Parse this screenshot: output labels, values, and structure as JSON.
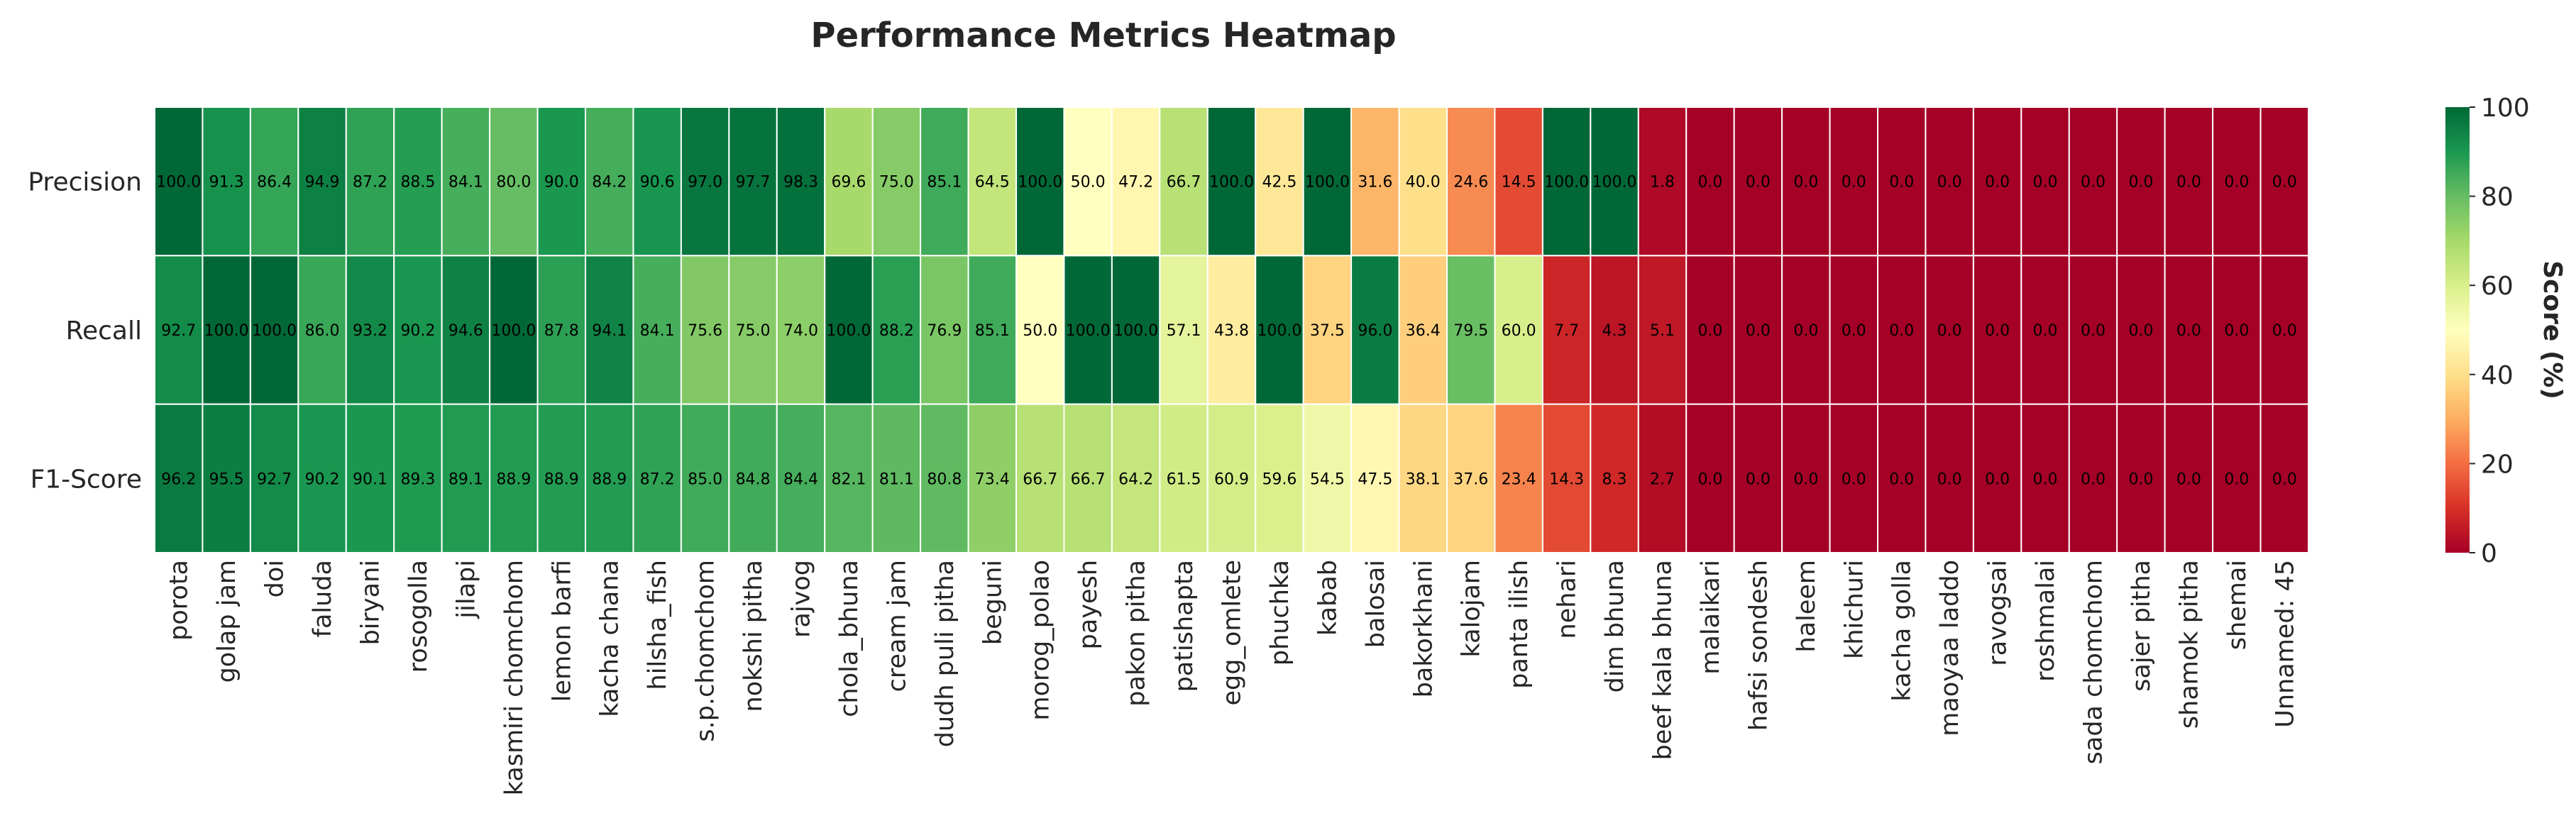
{
  "chart_data": {
    "type": "heatmap",
    "title": "Performance Metrics Heatmap",
    "rows": [
      "Precision",
      "Recall",
      "F1-Score"
    ],
    "columns": [
      "porota",
      "golap jam",
      "doi",
      "faluda",
      "biryani",
      "rosogolla",
      "jilapi",
      "kasmiri chomchom",
      "lemon barfi",
      "kacha chana",
      "hilsha_fish",
      "s.p.chomchom",
      "nokshi pitha",
      "rajvog",
      "chola_bhuna",
      "cream jam",
      "dudh puli pitha",
      "beguni",
      "morog_polao",
      "payesh",
      "pakon pitha",
      "patishapta",
      "egg_omlete",
      "phuchka",
      "kabab",
      "balosai",
      "bakorkhani",
      "kalojam",
      "panta ilish",
      "nehari",
      "dim bhuna",
      "beef kala bhuna",
      "malaikari",
      "hafsi sondesh",
      "haleem",
      "khichuri",
      "kacha golla",
      "maoyaa laddo",
      "ravogsai",
      "roshmalai",
      "sada chomchom",
      "sajer pitha",
      "shamok pitha",
      "shemai",
      "Unnamed: 45"
    ],
    "cells": [
      {
        "values": [
          100.0,
          91.3,
          86.4,
          94.9,
          87.2,
          88.5,
          84.1,
          80.0,
          90.0,
          84.2,
          90.6,
          97.0,
          97.7,
          98.3,
          69.6,
          75.0,
          85.1,
          64.5,
          100.0,
          50.0,
          47.2,
          66.7,
          100.0,
          42.5,
          100.0,
          31.6,
          40.0,
          24.6,
          14.5,
          100.0,
          100.0,
          1.8,
          0.0,
          0.0,
          0.0,
          0.0,
          0.0,
          0.0,
          0.0,
          0.0,
          0.0,
          0.0,
          0.0,
          0.0,
          0.0
        ],
        "labels": [
          "100.0",
          "91.3",
          "86.4",
          "94.9",
          "87.2",
          "88.5",
          "84.1",
          "80.0",
          "90.0",
          "84.2",
          "90.6",
          "97.0",
          "97.7",
          "98.3",
          "69.6",
          "75.0",
          "85.1",
          "64.5",
          "100.0",
          "50.0",
          "47.2",
          "66.7",
          "100.0",
          "42.5",
          "100.0",
          "31.6",
          "40.0",
          "24.6",
          "14.5",
          "100.0",
          "100.0",
          "1.8",
          "0.0",
          "0.0",
          "0.0",
          "0.0",
          "0.0",
          "0.0",
          "0.0",
          "0.0",
          "0.0",
          "0.0",
          "0.0",
          "0.0",
          "0.0"
        ]
      },
      {
        "values": [
          92.7,
          100.0,
          100.0,
          86.0,
          93.2,
          90.2,
          94.6,
          100.0,
          87.8,
          94.1,
          84.1,
          75.6,
          75.0,
          74.0,
          100.0,
          88.2,
          76.9,
          85.1,
          50.0,
          100.0,
          100.0,
          57.1,
          43.8,
          100.0,
          37.5,
          96.0,
          36.4,
          79.5,
          60.0,
          7.7,
          4.3,
          5.1,
          0.0,
          0.0,
          0.0,
          0.0,
          0.0,
          0.0,
          0.0,
          0.0,
          0.0,
          0.0,
          0.0,
          0.0,
          0.0
        ],
        "labels": [
          "92.7",
          "100.0",
          "100.0",
          "86.0",
          "93.2",
          "90.2",
          "94.6",
          "100.0",
          "87.8",
          "94.1",
          "84.1",
          "75.6",
          "75.0",
          "74.0",
          "100.0",
          "88.2",
          "76.9",
          "85.1",
          "50.0",
          "100.0",
          "100.0",
          "57.1",
          "43.8",
          "100.0",
          "37.5",
          "96.0",
          "36.4",
          "79.5",
          "60.0",
          "7.7",
          "4.3",
          "5.1",
          "0.0",
          "0.0",
          "0.0",
          "0.0",
          "0.0",
          "0.0",
          "0.0",
          "0.0",
          "0.0",
          "0.0",
          "0.0",
          "0.0",
          "0.0"
        ]
      },
      {
        "values": [
          96.2,
          95.5,
          92.7,
          90.2,
          90.1,
          89.3,
          89.1,
          88.9,
          88.9,
          88.9,
          87.2,
          85.0,
          84.8,
          84.4,
          82.1,
          81.1,
          80.8,
          73.4,
          66.7,
          66.7,
          64.2,
          61.5,
          60.9,
          59.6,
          54.5,
          47.5,
          38.1,
          37.6,
          23.4,
          14.3,
          8.3,
          2.7,
          0.0,
          0.0,
          0.0,
          0.0,
          0.0,
          0.0,
          0.0,
          0.0,
          0.0,
          0.0,
          0.0,
          0.0,
          0.0
        ],
        "labels": [
          "96.2",
          "95.5",
          "92.7",
          "90.2",
          "90.1",
          "89.3",
          "89.1",
          "88.9",
          "88.9",
          "88.9",
          "87.2",
          "85.0",
          "84.8",
          "84.4",
          "82.1",
          "81.1",
          "80.8",
          "73.4",
          "66.7",
          "66.7",
          "64.2",
          "61.5",
          "60.9",
          "59.6",
          "54.5",
          "47.5",
          "38.1",
          "37.6",
          "23.4",
          "14.3",
          "8.3",
          "2.7",
          "0.0",
          "0.0",
          "0.0",
          "0.0",
          "0.0",
          "0.0",
          "0.0",
          "0.0",
          "0.0",
          "0.0",
          "0.0",
          "0.0",
          "0.0"
        ]
      }
    ],
    "colormap": "RdYlGn",
    "value_range": [
      0,
      100
    ],
    "colorbar": {
      "label": "Score (%)",
      "ticks": [
        0,
        20,
        40,
        60,
        80,
        100
      ],
      "tick_labels": [
        "0",
        "20",
        "40",
        "60",
        "80",
        "100"
      ]
    }
  }
}
